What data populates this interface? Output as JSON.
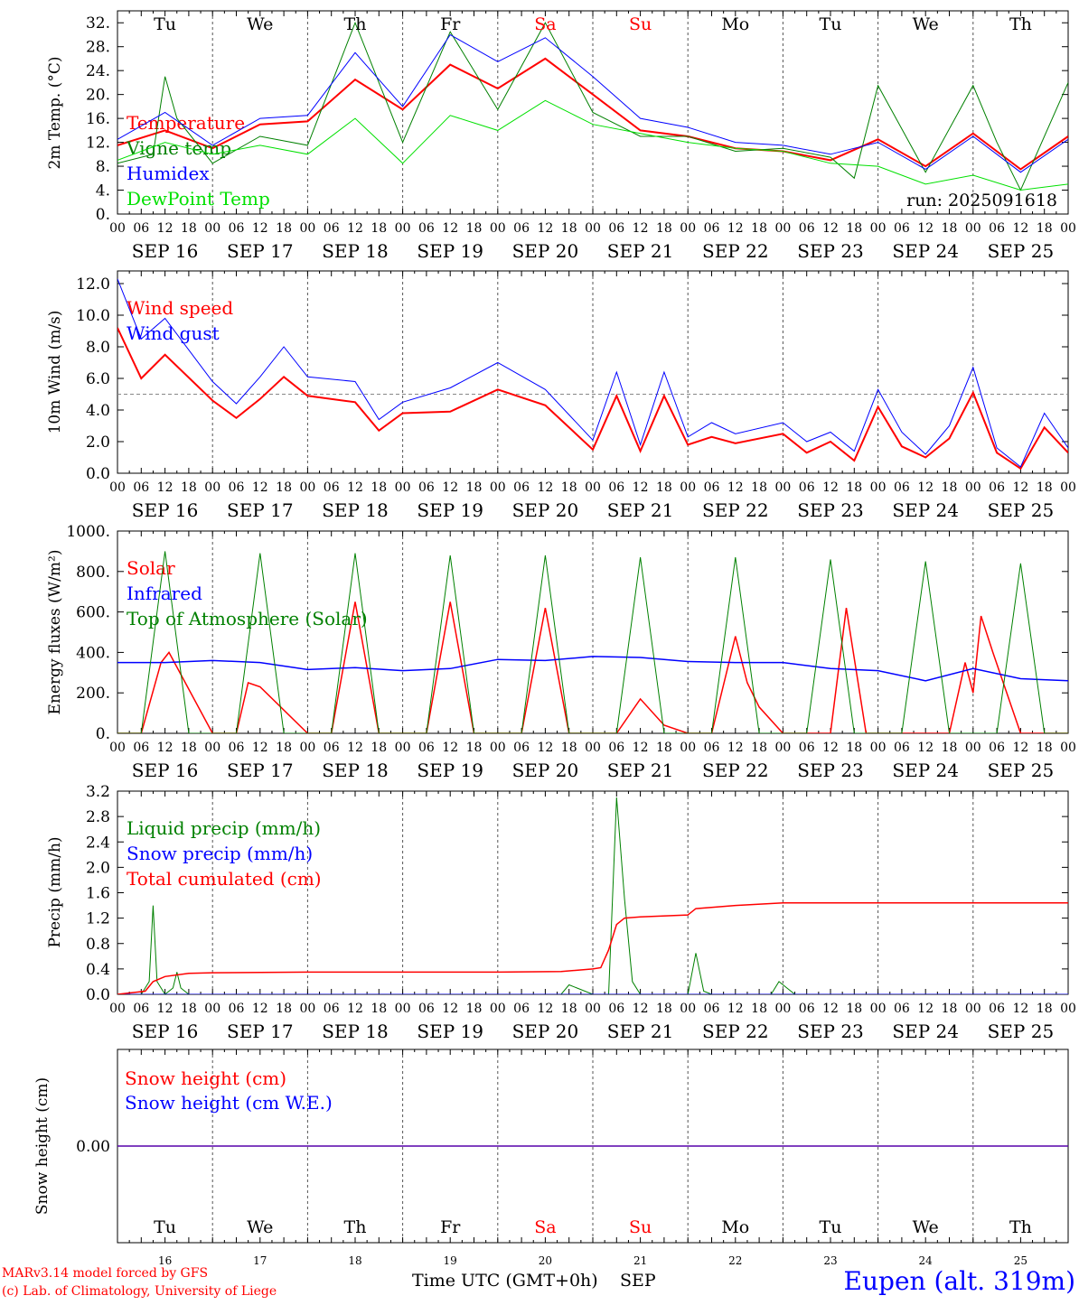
{
  "meteogram": {
    "x_tick_labels": [
      "00",
      "06",
      "12",
      "18"
    ],
    "end_tick_label": "00",
    "day_dates": [
      "SEP 16",
      "SEP 17",
      "SEP 18",
      "SEP 19",
      "SEP 20",
      "SEP 21",
      "SEP 22",
      "SEP 23",
      "SEP 24",
      "SEP 25"
    ],
    "day_names": [
      "Tu",
      "We",
      "Th",
      "Fr",
      "Sa",
      "Su",
      "Mo",
      "Tu",
      "We",
      "Th"
    ],
    "day_name_colors": [
      "#000000",
      "#000000",
      "#000000",
      "#000000",
      "#ff0000",
      "#ff0000",
      "#000000",
      "#000000",
      "#000000",
      "#000000"
    ],
    "day_numbers": [
      "16",
      "17",
      "18",
      "19",
      "20",
      "21",
      "22",
      "23",
      "24",
      "25"
    ],
    "month_label": "SEP",
    "time_axis_label": "Time UTC (GMT+0h)",
    "run_label": "run: 2025091618",
    "footer_credit_1": "MARv3.14 model forced by GFS",
    "footer_credit_2": "(c) Lab. of Climatology, University of Liege",
    "location_label": "Eupen (alt. 319m)",
    "colors": {
      "red": "#ff0000",
      "blue": "#0000ff",
      "green": "#008000",
      "light_green": "#00e000",
      "grid": "#777777"
    }
  },
  "chart_data": [
    {
      "type": "line",
      "ylabel": "2m Temp. (°C)",
      "ylim": [
        0,
        34
      ],
      "y_tick_labels": [
        "0.",
        "4.",
        "8.",
        "12.",
        "16.",
        "20.",
        "24.",
        "28.",
        "32."
      ],
      "y_tick_values": [
        0,
        4,
        8,
        12,
        16,
        20,
        24,
        28,
        32
      ],
      "x_hours_range": [
        0,
        240
      ],
      "series": [
        {
          "name": "Temperature",
          "color": "#ff0000",
          "width": 2,
          "x": [
            0,
            12,
            24,
            36,
            48,
            60,
            72,
            84,
            96,
            108,
            120,
            132,
            144,
            156,
            168,
            180,
            192,
            204,
            216,
            228,
            240
          ],
          "y": [
            11.5,
            14,
            11,
            15,
            15.5,
            22.5,
            17.5,
            25,
            21,
            26,
            20,
            14,
            13,
            11,
            10.5,
            9,
            12.5,
            8,
            13.5,
            7.5,
            13
          ]
        },
        {
          "name": "Vigne temp",
          "color": "#008000",
          "width": 1,
          "x": [
            0,
            9,
            12,
            15,
            24,
            36,
            48,
            60,
            72,
            84,
            96,
            108,
            120,
            132,
            144,
            156,
            168,
            180,
            186,
            192,
            204,
            216,
            222,
            228,
            240
          ],
          "y": [
            8.5,
            10,
            23,
            16,
            8.5,
            13,
            11.5,
            32,
            12,
            30.5,
            17.5,
            32,
            17,
            13,
            13,
            10.5,
            11,
            9.5,
            6,
            21.5,
            7,
            21.5,
            12,
            4,
            22
          ]
        },
        {
          "name": "Humidex",
          "color": "#0000ff",
          "width": 1,
          "x": [
            0,
            12,
            24,
            36,
            48,
            60,
            72,
            84,
            96,
            108,
            120,
            132,
            144,
            156,
            168,
            180,
            192,
            204,
            216,
            228,
            240
          ],
          "y": [
            12.5,
            17,
            11.5,
            16,
            16.5,
            27,
            18,
            30,
            25.5,
            29.5,
            23,
            16,
            14.5,
            12,
            11.5,
            10,
            12,
            7.5,
            13,
            7,
            12.5
          ]
        },
        {
          "name": "DewPoint Temp",
          "color": "#00e000",
          "width": 1,
          "x": [
            0,
            12,
            24,
            36,
            48,
            60,
            72,
            84,
            96,
            108,
            120,
            132,
            144,
            156,
            168,
            180,
            192,
            204,
            216,
            228,
            240
          ],
          "y": [
            9,
            12,
            10,
            11.5,
            10,
            16,
            8.5,
            16.5,
            14,
            19,
            15,
            13.5,
            12,
            11,
            10.5,
            8.5,
            8,
            5,
            6.5,
            4,
            5
          ]
        }
      ]
    },
    {
      "type": "line",
      "ylabel": "10m Wind (m/s)",
      "ylim": [
        0,
        12.8
      ],
      "y_tick_labels": [
        "0.0",
        "2.0",
        "4.0",
        "6.0",
        "8.0",
        "10.0",
        "12.0"
      ],
      "y_tick_values": [
        0,
        2,
        4,
        6,
        8,
        10,
        12
      ],
      "reference_line": 5,
      "x_hours_range": [
        0,
        240
      ],
      "series": [
        {
          "name": "Wind speed",
          "color": "#ff0000",
          "width": 2,
          "x": [
            0,
            6,
            12,
            24,
            30,
            36,
            42,
            48,
            60,
            66,
            72,
            84,
            96,
            108,
            120,
            126,
            132,
            138,
            144,
            150,
            156,
            168,
            174,
            180,
            186,
            192,
            198,
            204,
            210,
            216,
            222,
            228,
            234,
            240
          ],
          "y": [
            9.2,
            6,
            7.5,
            4.6,
            3.5,
            4.7,
            6.1,
            4.9,
            4.5,
            2.7,
            3.8,
            3.9,
            5.3,
            4.3,
            1.5,
            4.9,
            1.4,
            4.9,
            1.8,
            2.3,
            1.9,
            2.5,
            1.3,
            2,
            0.8,
            4.2,
            1.7,
            1,
            2.2,
            5.1,
            1.3,
            0.3,
            2.9,
            1.3
          ]
        },
        {
          "name": "Wind gust",
          "color": "#0000ff",
          "width": 1,
          "x": [
            0,
            6,
            12,
            24,
            30,
            36,
            42,
            48,
            60,
            66,
            72,
            84,
            96,
            108,
            120,
            126,
            132,
            138,
            144,
            150,
            156,
            168,
            174,
            180,
            186,
            192,
            198,
            204,
            210,
            216,
            222,
            228,
            234,
            240
          ],
          "y": [
            12.3,
            8.5,
            9.8,
            5.8,
            4.4,
            6.1,
            8,
            6.1,
            5.8,
            3.4,
            4.5,
            5.4,
            7,
            5.3,
            2.1,
            6.4,
            1.8,
            6.4,
            2.3,
            3.2,
            2.5,
            3.2,
            2,
            2.6,
            1.4,
            5.3,
            2.6,
            1.2,
            3,
            6.7,
            1.6,
            0.4,
            3.8,
            1.6
          ]
        }
      ]
    },
    {
      "type": "line",
      "ylabel": "Energy fluxes (W/m²)",
      "ylim": [
        0,
        1000
      ],
      "y_tick_labels": [
        "0.",
        "200.",
        "400.",
        "600.",
        "800.",
        "1000."
      ],
      "y_tick_values": [
        0,
        200,
        400,
        600,
        800,
        1000
      ],
      "x_hours_range": [
        0,
        240
      ],
      "series": [
        {
          "name": "Solar",
          "color": "#ff0000",
          "width": 1.5,
          "x": [
            0,
            6,
            11,
            13,
            24,
            30,
            33,
            36,
            48,
            54,
            60,
            66,
            72,
            78,
            84,
            90,
            96,
            102,
            108,
            114,
            120,
            126,
            132,
            138,
            144,
            150,
            156,
            159,
            162,
            168,
            174,
            180,
            184,
            189,
            192,
            204,
            210,
            214,
            216,
            218,
            221,
            228,
            234,
            240
          ],
          "y": [
            0,
            0,
            350,
            400,
            0,
            0,
            250,
            230,
            0,
            0,
            650,
            0,
            0,
            0,
            650,
            0,
            0,
            0,
            620,
            0,
            0,
            0,
            170,
            40,
            0,
            0,
            480,
            250,
            130,
            0,
            0,
            0,
            620,
            0,
            0,
            0,
            0,
            350,
            200,
            580,
            400,
            0,
            0,
            0
          ]
        },
        {
          "name": "Infrared",
          "color": "#0000ff",
          "width": 1.5,
          "x": [
            0,
            12,
            24,
            36,
            48,
            60,
            72,
            84,
            96,
            108,
            120,
            132,
            144,
            156,
            168,
            180,
            192,
            204,
            216,
            228,
            240
          ],
          "y": [
            350,
            350,
            360,
            350,
            315,
            325,
            310,
            320,
            365,
            360,
            380,
            375,
            355,
            350,
            350,
            320,
            310,
            260,
            320,
            270,
            260
          ]
        },
        {
          "name": "Top of Atmosphere (Solar)",
          "color": "#008000",
          "width": 1,
          "x": [
            0,
            6,
            12,
            18,
            24,
            30,
            36,
            42,
            48,
            54,
            60,
            66,
            72,
            78,
            84,
            90,
            96,
            102,
            108,
            114,
            120,
            126,
            132,
            138,
            144,
            150,
            156,
            162,
            168,
            174,
            180,
            186,
            192,
            198,
            204,
            210,
            216,
            222,
            228,
            234,
            240
          ],
          "y": [
            0,
            0,
            900,
            0,
            0,
            0,
            890,
            0,
            0,
            0,
            890,
            0,
            0,
            0,
            880,
            0,
            0,
            0,
            880,
            0,
            0,
            0,
            870,
            0,
            0,
            0,
            870,
            0,
            0,
            0,
            860,
            0,
            0,
            0,
            850,
            0,
            0,
            0,
            840,
            0,
            0
          ]
        }
      ]
    },
    {
      "type": "line",
      "ylabel": "Precip (mm/h)",
      "ylim": [
        0,
        3.2
      ],
      "y_tick_labels": [
        "0.0",
        "0.4",
        "0.8",
        "1.2",
        "1.6",
        "2.0",
        "2.4",
        "2.8",
        "3.2"
      ],
      "y_tick_values": [
        0,
        0.4,
        0.8,
        1.2,
        1.6,
        2.0,
        2.4,
        2.8,
        3.2
      ],
      "x_hours_range": [
        0,
        240
      ],
      "series": [
        {
          "name": "Liquid precip (mm/h)",
          "color": "#008000",
          "width": 1,
          "x": [
            0,
            6,
            8,
            9,
            10,
            12,
            14,
            15,
            16,
            18,
            24,
            48,
            96,
            112,
            114,
            116,
            120,
            124,
            126,
            128,
            130,
            132,
            144,
            146,
            148,
            150,
            165,
            167,
            169,
            171,
            240
          ],
          "y": [
            0,
            0,
            0.2,
            1.4,
            0.2,
            0,
            0.1,
            0.35,
            0.1,
            0,
            0,
            0,
            0,
            0,
            0.15,
            0.1,
            0,
            0,
            3.1,
            1.5,
            0.2,
            0,
            0,
            0.65,
            0.05,
            0,
            0,
            0.2,
            0.1,
            0,
            0
          ]
        },
        {
          "name": "Snow precip (mm/h)",
          "color": "#0000ff",
          "width": 1,
          "x": [
            0,
            240
          ],
          "y": [
            0,
            0
          ]
        },
        {
          "name": "Total cumulated (cm)",
          "color": "#ff0000",
          "width": 1.5,
          "x": [
            0,
            7,
            9,
            12,
            18,
            24,
            48,
            72,
            96,
            112,
            120,
            122,
            124,
            126,
            128,
            132,
            144,
            146,
            156,
            168,
            192,
            240
          ],
          "y": [
            0,
            0.05,
            0.2,
            0.28,
            0.33,
            0.34,
            0.35,
            0.35,
            0.35,
            0.36,
            0.4,
            0.42,
            0.7,
            1.1,
            1.2,
            1.22,
            1.25,
            1.35,
            1.4,
            1.44,
            1.44,
            1.44
          ]
        }
      ]
    },
    {
      "type": "line",
      "ylabel": "Snow height (cm)",
      "ylim": [
        -1,
        1
      ],
      "y_tick_labels": [
        "0.00"
      ],
      "y_tick_values": [
        0
      ],
      "x_hours_range": [
        0,
        240
      ],
      "series": [
        {
          "name": "Snow height (cm)",
          "color": "#ff0000",
          "width": 1.5,
          "x": [
            0,
            240
          ],
          "y": [
            0,
            0
          ]
        },
        {
          "name": "Snow height (cm W.E.)",
          "color": "#0000ff",
          "width": 1,
          "x": [
            0,
            240
          ],
          "y": [
            0,
            0
          ]
        }
      ]
    }
  ]
}
